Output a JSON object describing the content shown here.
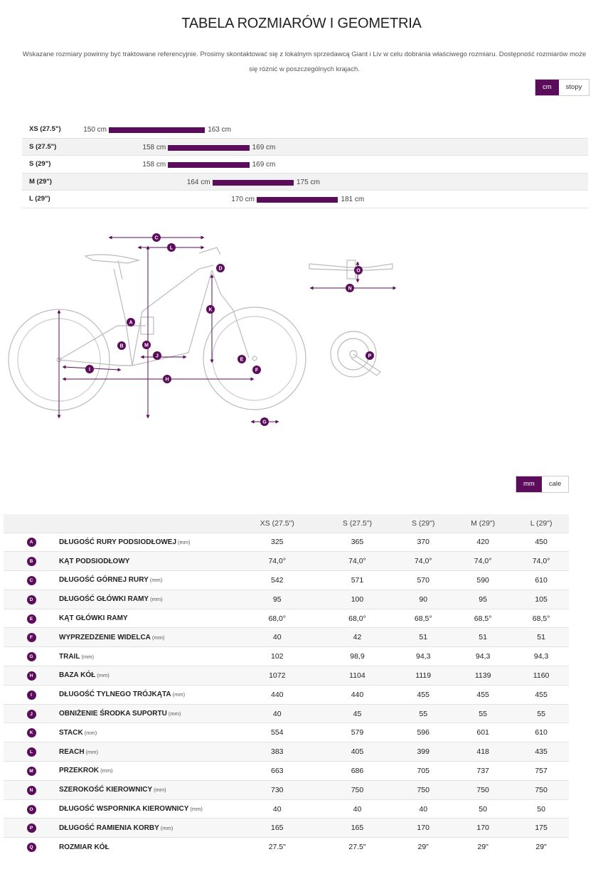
{
  "header": {
    "title": "TABELA ROZMIARÓW I GEOMETRIA",
    "intro": "Wskazane rozmiary powinny być traktowane referencyjnie. Prosimy skontaktować się z lokalnym sprzedawcą Giant i Liv w celu dobrania właściwego rozmiaru. Dostępność rozmiarów może się różnić w poszczególnych krajach."
  },
  "units_toggle": {
    "options": [
      "cm",
      "stopy"
    ],
    "active": "cm"
  },
  "chart_data": {
    "type": "bar",
    "orientation": "horizontal-range",
    "unit": "cm",
    "categories": [
      "XS (27.5\")",
      "S (27.5\")",
      "S (29\")",
      "M (29\")",
      "L (29\")"
    ],
    "ranges": [
      [
        150,
        163
      ],
      [
        158,
        169
      ],
      [
        158,
        169
      ],
      [
        164,
        175
      ],
      [
        170,
        181
      ]
    ],
    "range_labels": [
      [
        "150 cm",
        "163 cm"
      ],
      [
        "158 cm",
        "169 cm"
      ],
      [
        "158 cm",
        "169 cm"
      ],
      [
        "164 cm",
        "175 cm"
      ],
      [
        "170 cm",
        "181 cm"
      ]
    ],
    "xlim": [
      140,
      190
    ],
    "bar_color": "#5b0d5b"
  },
  "diagram": {
    "labels": [
      "A",
      "B",
      "C",
      "D",
      "E",
      "F",
      "G",
      "H",
      "I",
      "J",
      "K",
      "L",
      "M",
      "N",
      "O",
      "P"
    ]
  },
  "table_toggle": {
    "options": [
      "mm",
      "cale"
    ],
    "active": "mm"
  },
  "geometry": {
    "columns": [
      "XS (27.5\")",
      "S (27.5\")",
      "S (29\")",
      "M (29\")",
      "L (29\")"
    ],
    "rows": [
      {
        "key": "A",
        "name": "DŁUGOŚĆ RURY PODSIODŁOWEJ",
        "unit": "(mm)",
        "values": [
          "325",
          "365",
          "370",
          "420",
          "450"
        ]
      },
      {
        "key": "B",
        "name": "KĄT PODSIODŁOWY",
        "unit": "",
        "values": [
          "74,0°",
          "74,0°",
          "74,0°",
          "74,0°",
          "74,0°"
        ]
      },
      {
        "key": "C",
        "name": "DŁUGOŚĆ GÓRNEJ RURY",
        "unit": "(mm)",
        "values": [
          "542",
          "571",
          "570",
          "590",
          "610"
        ]
      },
      {
        "key": "D",
        "name": "DŁUGOŚĆ GŁÓWKI RAMY",
        "unit": "(mm)",
        "values": [
          "95",
          "100",
          "90",
          "95",
          "105"
        ]
      },
      {
        "key": "E",
        "name": "KĄT GŁÓWKI RAMY",
        "unit": "",
        "values": [
          "68,0°",
          "68,0°",
          "68,5°",
          "68,5°",
          "68,5°"
        ]
      },
      {
        "key": "F",
        "name": "WYPRZEDZENIE WIDELCA",
        "unit": "(mm)",
        "values": [
          "40",
          "42",
          "51",
          "51",
          "51"
        ]
      },
      {
        "key": "G",
        "name": "TRAIL",
        "unit": "(mm)",
        "values": [
          "102",
          "98,9",
          "94,3",
          "94,3",
          "94,3"
        ]
      },
      {
        "key": "H",
        "name": "BAZA KÓŁ",
        "unit": "(mm)",
        "values": [
          "1072",
          "1104",
          "1119",
          "1139",
          "1160"
        ]
      },
      {
        "key": "I",
        "name": "DŁUGOŚĆ TYLNEGO TRÓJKĄTA",
        "unit": "(mm)",
        "values": [
          "440",
          "440",
          "455",
          "455",
          "455"
        ]
      },
      {
        "key": "J",
        "name": "OBNIŻENIE ŚRODKA SUPORTU",
        "unit": "(mm)",
        "values": [
          "40",
          "45",
          "55",
          "55",
          "55"
        ]
      },
      {
        "key": "K",
        "name": "STACK",
        "unit": "(mm)",
        "values": [
          "554",
          "579",
          "596",
          "601",
          "610"
        ]
      },
      {
        "key": "L",
        "name": "REACH",
        "unit": "(mm)",
        "values": [
          "383",
          "405",
          "399",
          "418",
          "435"
        ]
      },
      {
        "key": "M",
        "name": "PRZEKROK",
        "unit": "(mm)",
        "values": [
          "663",
          "686",
          "705",
          "737",
          "757"
        ]
      },
      {
        "key": "N",
        "name": "SZEROKOŚĆ KIEROWNICY",
        "unit": "(mm)",
        "values": [
          "730",
          "750",
          "750",
          "750",
          "750"
        ]
      },
      {
        "key": "O",
        "name": "DŁUGOŚĆ WSPORNIKA KIEROWNICY",
        "unit": "(mm)",
        "values": [
          "40",
          "40",
          "40",
          "50",
          "50"
        ]
      },
      {
        "key": "P",
        "name": "DŁUGOŚĆ RAMIENIA KORBY",
        "unit": "(mm)",
        "values": [
          "165",
          "165",
          "170",
          "170",
          "175"
        ]
      },
      {
        "key": "Q",
        "name": "ROZMIAR KÓŁ",
        "unit": "",
        "values": [
          "27.5\"",
          "27.5\"",
          "29\"",
          "29\"",
          "29\""
        ]
      }
    ]
  }
}
